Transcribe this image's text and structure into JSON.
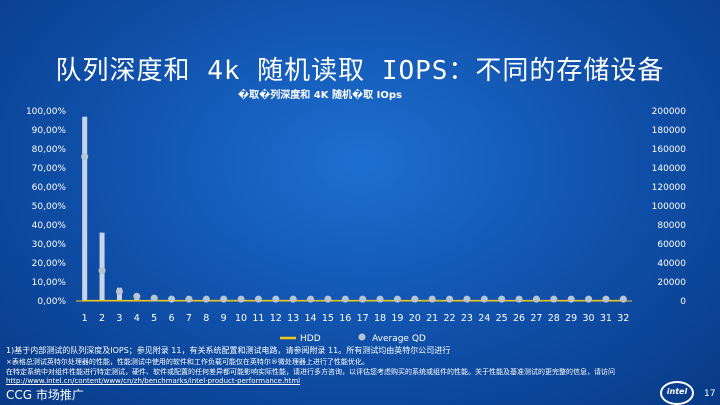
{
  "slide": {
    "title": "队列深度和 4k 随机读取 IOPS：不同的存储设备",
    "footnotes": [
      "1)基于内部测试的队列深度及IOPS；参见附录 11，有关系统配置和测试电路，请参阅附录 11。所有测试均由英特尔公司进行",
      "×表格总测试英特尔处理器的性能，性能测试中使用的软件和工作负载可能仅在英特尔®微处理器上进行了性能优化。",
      "在特定系统中对组件性能进行特定测试，硬件、软件或配置的任何差异都可能影响实际性能，请进行多方咨询，以评估您考虑购买的系统或组件的性能。关于性能及基准测试的更完整的信息，请访问"
    ],
    "footnote_link": "http://www.intel.cn/content/www/cn/zh/benchmarks/intel-product-performance.html",
    "brand": "CCG 市场推广",
    "logo_text": "intel",
    "page_number": "17"
  },
  "colors": {
    "hdd": "#f5c518",
    "average_qd": "#b9c4d3",
    "bar_main": "#c9d4e8",
    "axis_text": "#ffffff"
  },
  "chart_data": {
    "type": "bar",
    "title": "�取�列深度和 4K 随机�取 IOps",
    "categories": [
      "1",
      "2",
      "3",
      "4",
      "5",
      "6",
      "7",
      "8",
      "9",
      "10",
      "11",
      "12",
      "13",
      "14",
      "15",
      "16",
      "17",
      "18",
      "19",
      "20",
      "21",
      "22",
      "23",
      "24",
      "25",
      "26",
      "27",
      "28",
      "29",
      "30",
      "31",
      "32"
    ],
    "left_axis": {
      "ticks": [
        "0,00%",
        "10,00%",
        "20,00%",
        "30,00%",
        "40,00%",
        "50,00%",
        "60,00%",
        "70,00%",
        "80,00%",
        "90,00%",
        "100,00%"
      ],
      "range": [
        0,
        100
      ]
    },
    "right_axis": {
      "ticks": [
        "0",
        "20000",
        "40000",
        "60000",
        "80000",
        "100000",
        "120000",
        "140000",
        "160000",
        "180000",
        "200000"
      ],
      "range": [
        0,
        200000
      ]
    },
    "bar_series": {
      "name": "",
      "axis": "left",
      "values": [
        97,
        36,
        7,
        3,
        1.5,
        1,
        0.8,
        0.7,
        0.6,
        0.5,
        0.5,
        0.5,
        0.5,
        0.5,
        0.5,
        0.5,
        0.5,
        0.5,
        0.5,
        0.5,
        0.5,
        0.5,
        0.5,
        0.5,
        0.5,
        0.5,
        0.5,
        0.5,
        0.5,
        0.5,
        0.5,
        0.5
      ]
    },
    "series": [
      {
        "name": "HDD",
        "axis": "right",
        "style": "line",
        "values": [
          300,
          300,
          300,
          300,
          300,
          300,
          300,
          300,
          300,
          300,
          300,
          300,
          300,
          300,
          300,
          300,
          300,
          300,
          300,
          300,
          300,
          300,
          300,
          300,
          300,
          300,
          300,
          300,
          300,
          300,
          300,
          300
        ]
      },
      {
        "name": "Average QD",
        "axis": "left",
        "style": "marker",
        "values": [
          76,
          16,
          5,
          2.5,
          1.5,
          1,
          1,
          1,
          1,
          1,
          1,
          1,
          1,
          1,
          1,
          1,
          1,
          1,
          1,
          1,
          1,
          1,
          1,
          1,
          1,
          1,
          1,
          1,
          1,
          1,
          1,
          1
        ]
      }
    ],
    "legend_position": "bottom",
    "grid": false
  }
}
